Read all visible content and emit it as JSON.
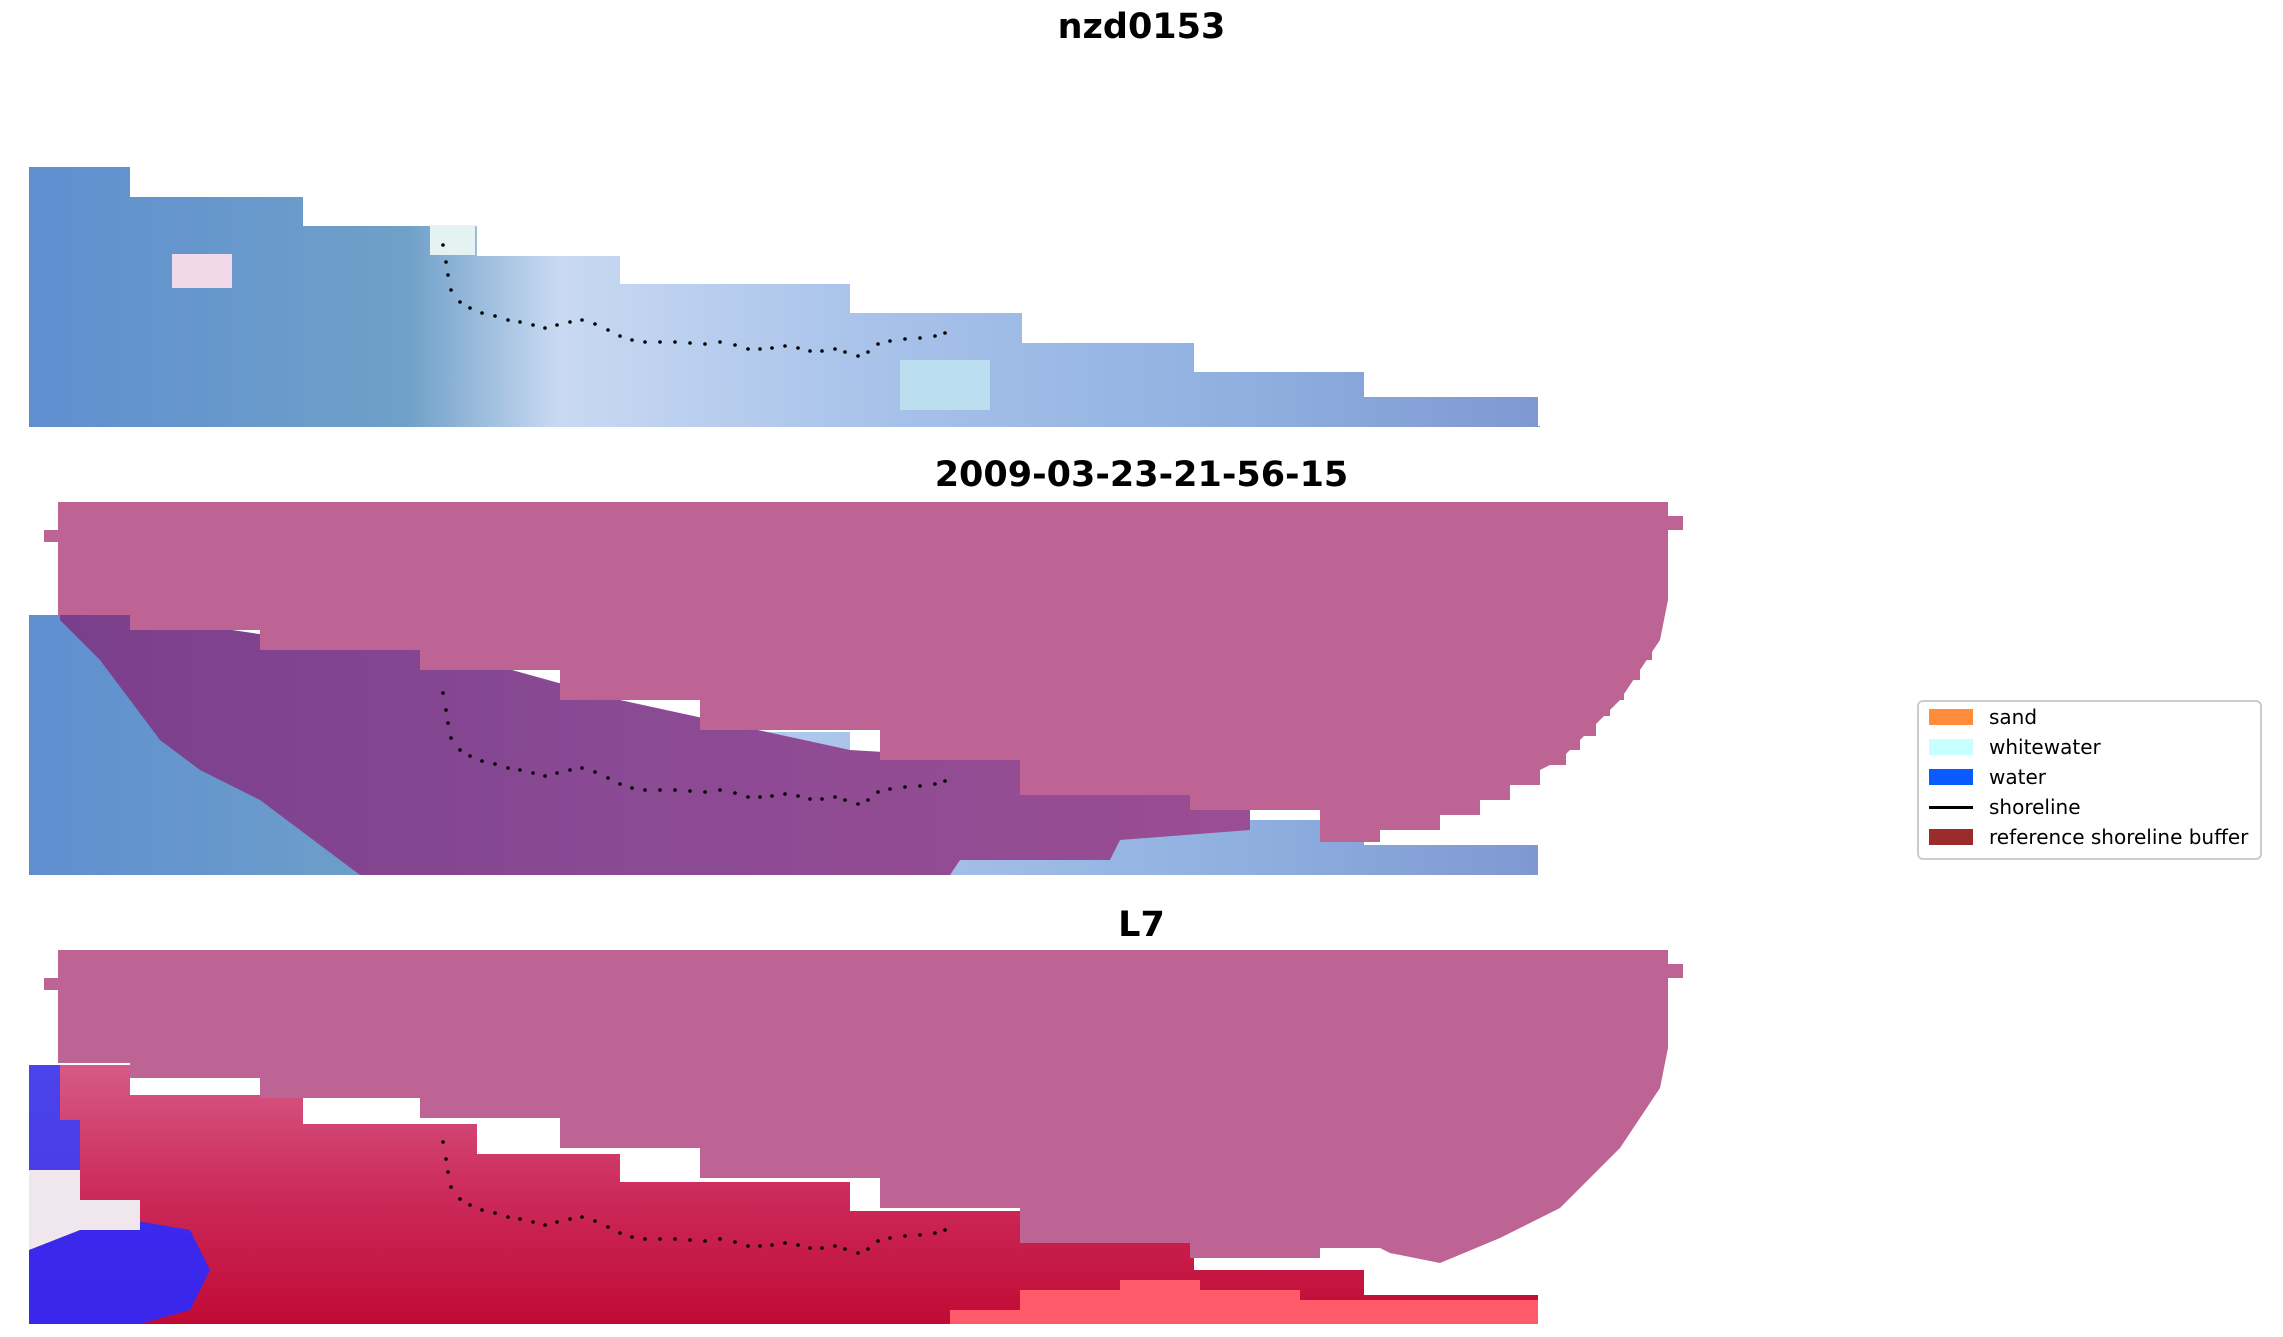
{
  "titles": {
    "panel1": "nzd0153",
    "panel2": "2009-03-23-21-56-15",
    "panel3": "L7"
  },
  "legend": {
    "items": [
      {
        "label": "sand",
        "color": "#ff8c3a",
        "kind": "patch"
      },
      {
        "label": "whitewater",
        "color": "#c8ffff",
        "kind": "patch"
      },
      {
        "label": "water",
        "color": "#0a5aff",
        "kind": "patch"
      },
      {
        "label": "shoreline",
        "color": "#000000",
        "kind": "line"
      },
      {
        "label": "reference shoreline buffer",
        "color": "#9b2c2c",
        "kind": "patch"
      }
    ]
  },
  "colors": {
    "buffer_overlay": "#bd6494",
    "satellite_base": "#6f9ad0",
    "index_high": "#c8103a",
    "index_low": "#1a1aff"
  }
}
